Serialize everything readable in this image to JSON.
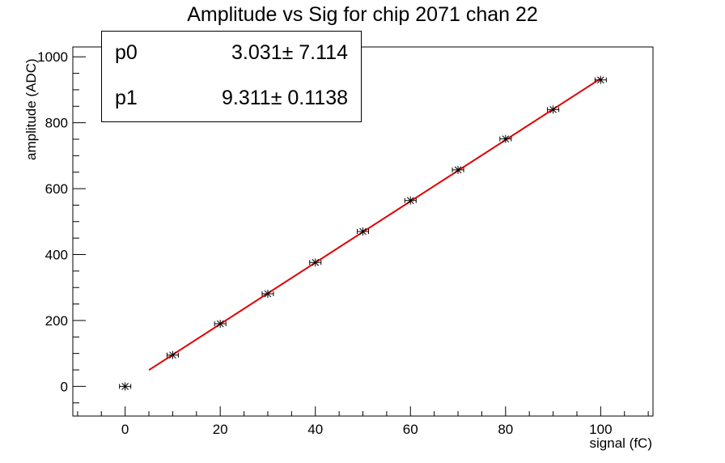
{
  "chart_data": {
    "type": "scatter",
    "title": "Amplitude vs Sig for chip 2071 chan 22",
    "xlabel": "signal (fC)",
    "ylabel": "amplitude (ADC)",
    "xlim": [
      -11,
      111
    ],
    "ylim": [
      -90,
      1030
    ],
    "x_ticks": [
      0,
      20,
      40,
      60,
      80,
      100
    ],
    "y_ticks": [
      0,
      200,
      400,
      600,
      800,
      1000
    ],
    "grid": false,
    "series": [
      {
        "markers": "star-with-error-bars",
        "color": "#000000",
        "x": [
          0,
          10,
          20,
          30,
          40,
          50,
          60,
          70,
          80,
          90,
          100
        ],
        "y": [
          0,
          95,
          190,
          281,
          376,
          470,
          564,
          657,
          751,
          840,
          930
        ]
      }
    ],
    "fit": {
      "color": "#e00000",
      "x_range": [
        5,
        100
      ],
      "p0": 3.031,
      "p1": 9.311
    },
    "stats_box": {
      "rows": [
        {
          "name": "p0",
          "value": "3.031",
          "pm": "±",
          "error": "7.114"
        },
        {
          "name": "p1",
          "value": "9.311",
          "pm": "±",
          "error": "0.1138"
        }
      ]
    }
  }
}
